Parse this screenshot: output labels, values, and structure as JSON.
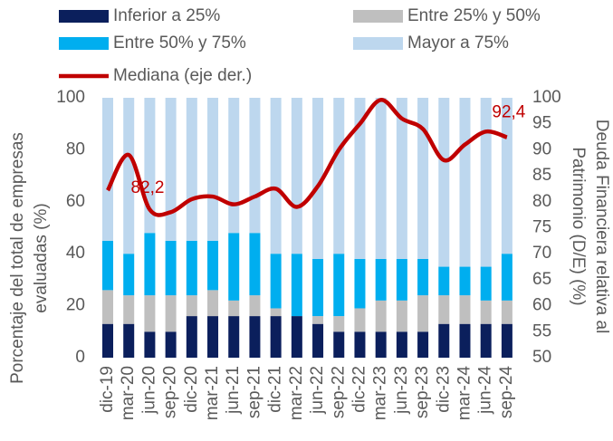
{
  "chart_data": {
    "type": "stacked_bar_line",
    "categories": [
      "dic-19",
      "mar-20",
      "jun-20",
      "sep-20",
      "dic-20",
      "mar-21",
      "jun-21",
      "sep-21",
      "dic-21",
      "mar-22",
      "jun-22",
      "sep-22",
      "dic-22",
      "mar-23",
      "jun-23",
      "sep-23",
      "dic-23",
      "mar-24",
      "jun-24",
      "sep-24"
    ],
    "series": [
      {
        "name": "Inferior a 25%",
        "color": "#0b1f5c",
        "type": "bar",
        "values": [
          13,
          13,
          10,
          10,
          16,
          16,
          16,
          16,
          16,
          16,
          13,
          10,
          10,
          10,
          10,
          10,
          13,
          13,
          13,
          13
        ]
      },
      {
        "name": "Entre 25% y 50%",
        "color": "#bfbfbf",
        "type": "bar",
        "values": [
          13,
          11,
          14,
          14,
          8,
          10,
          6,
          8,
          3,
          0,
          3,
          6,
          9,
          12,
          12,
          14,
          11,
          11,
          9,
          9
        ]
      },
      {
        "name": "Entre 50% y 75%",
        "color": "#00aeef",
        "type": "bar",
        "values": [
          19,
          16,
          24,
          21,
          21,
          19,
          26,
          24,
          21,
          24,
          22,
          24,
          19,
          16,
          16,
          14,
          11,
          11,
          13,
          18
        ]
      },
      {
        "name": "Mayor a 75%",
        "color": "#bdd7ee",
        "type": "bar",
        "values": [
          55,
          60,
          52,
          55,
          55,
          55,
          52,
          52,
          60,
          60,
          62,
          60,
          62,
          62,
          62,
          62,
          65,
          65,
          65,
          60
        ]
      },
      {
        "name": "Mediana (eje der.)",
        "color": "#c00000",
        "type": "line",
        "axis": "y2",
        "values": [
          82.2,
          89,
          78.5,
          78,
          80.5,
          81,
          79.5,
          81,
          82.5,
          79,
          83,
          90,
          95,
          99.6,
          96,
          94,
          88,
          91,
          93.5,
          92.4
        ],
        "value_labels": [
          "82,2",
          null,
          null,
          null,
          null,
          null,
          null,
          null,
          null,
          null,
          null,
          null,
          null,
          null,
          null,
          null,
          null,
          null,
          null,
          "92,4"
        ]
      }
    ],
    "ylabel": [
      "Porcentaje del total de empresas",
      "evaluadas (%)"
    ],
    "y2label": [
      "Deuda Financiera relativa al",
      "Patrimonio (D/E) (%)"
    ],
    "ylim": [
      0,
      100
    ],
    "yticks": [
      0,
      20,
      40,
      60,
      80,
      100
    ],
    "y2lim": [
      50,
      100
    ],
    "y2ticks": [
      50,
      55,
      60,
      65,
      70,
      75,
      80,
      85,
      90,
      95,
      100
    ],
    "grid": false
  }
}
